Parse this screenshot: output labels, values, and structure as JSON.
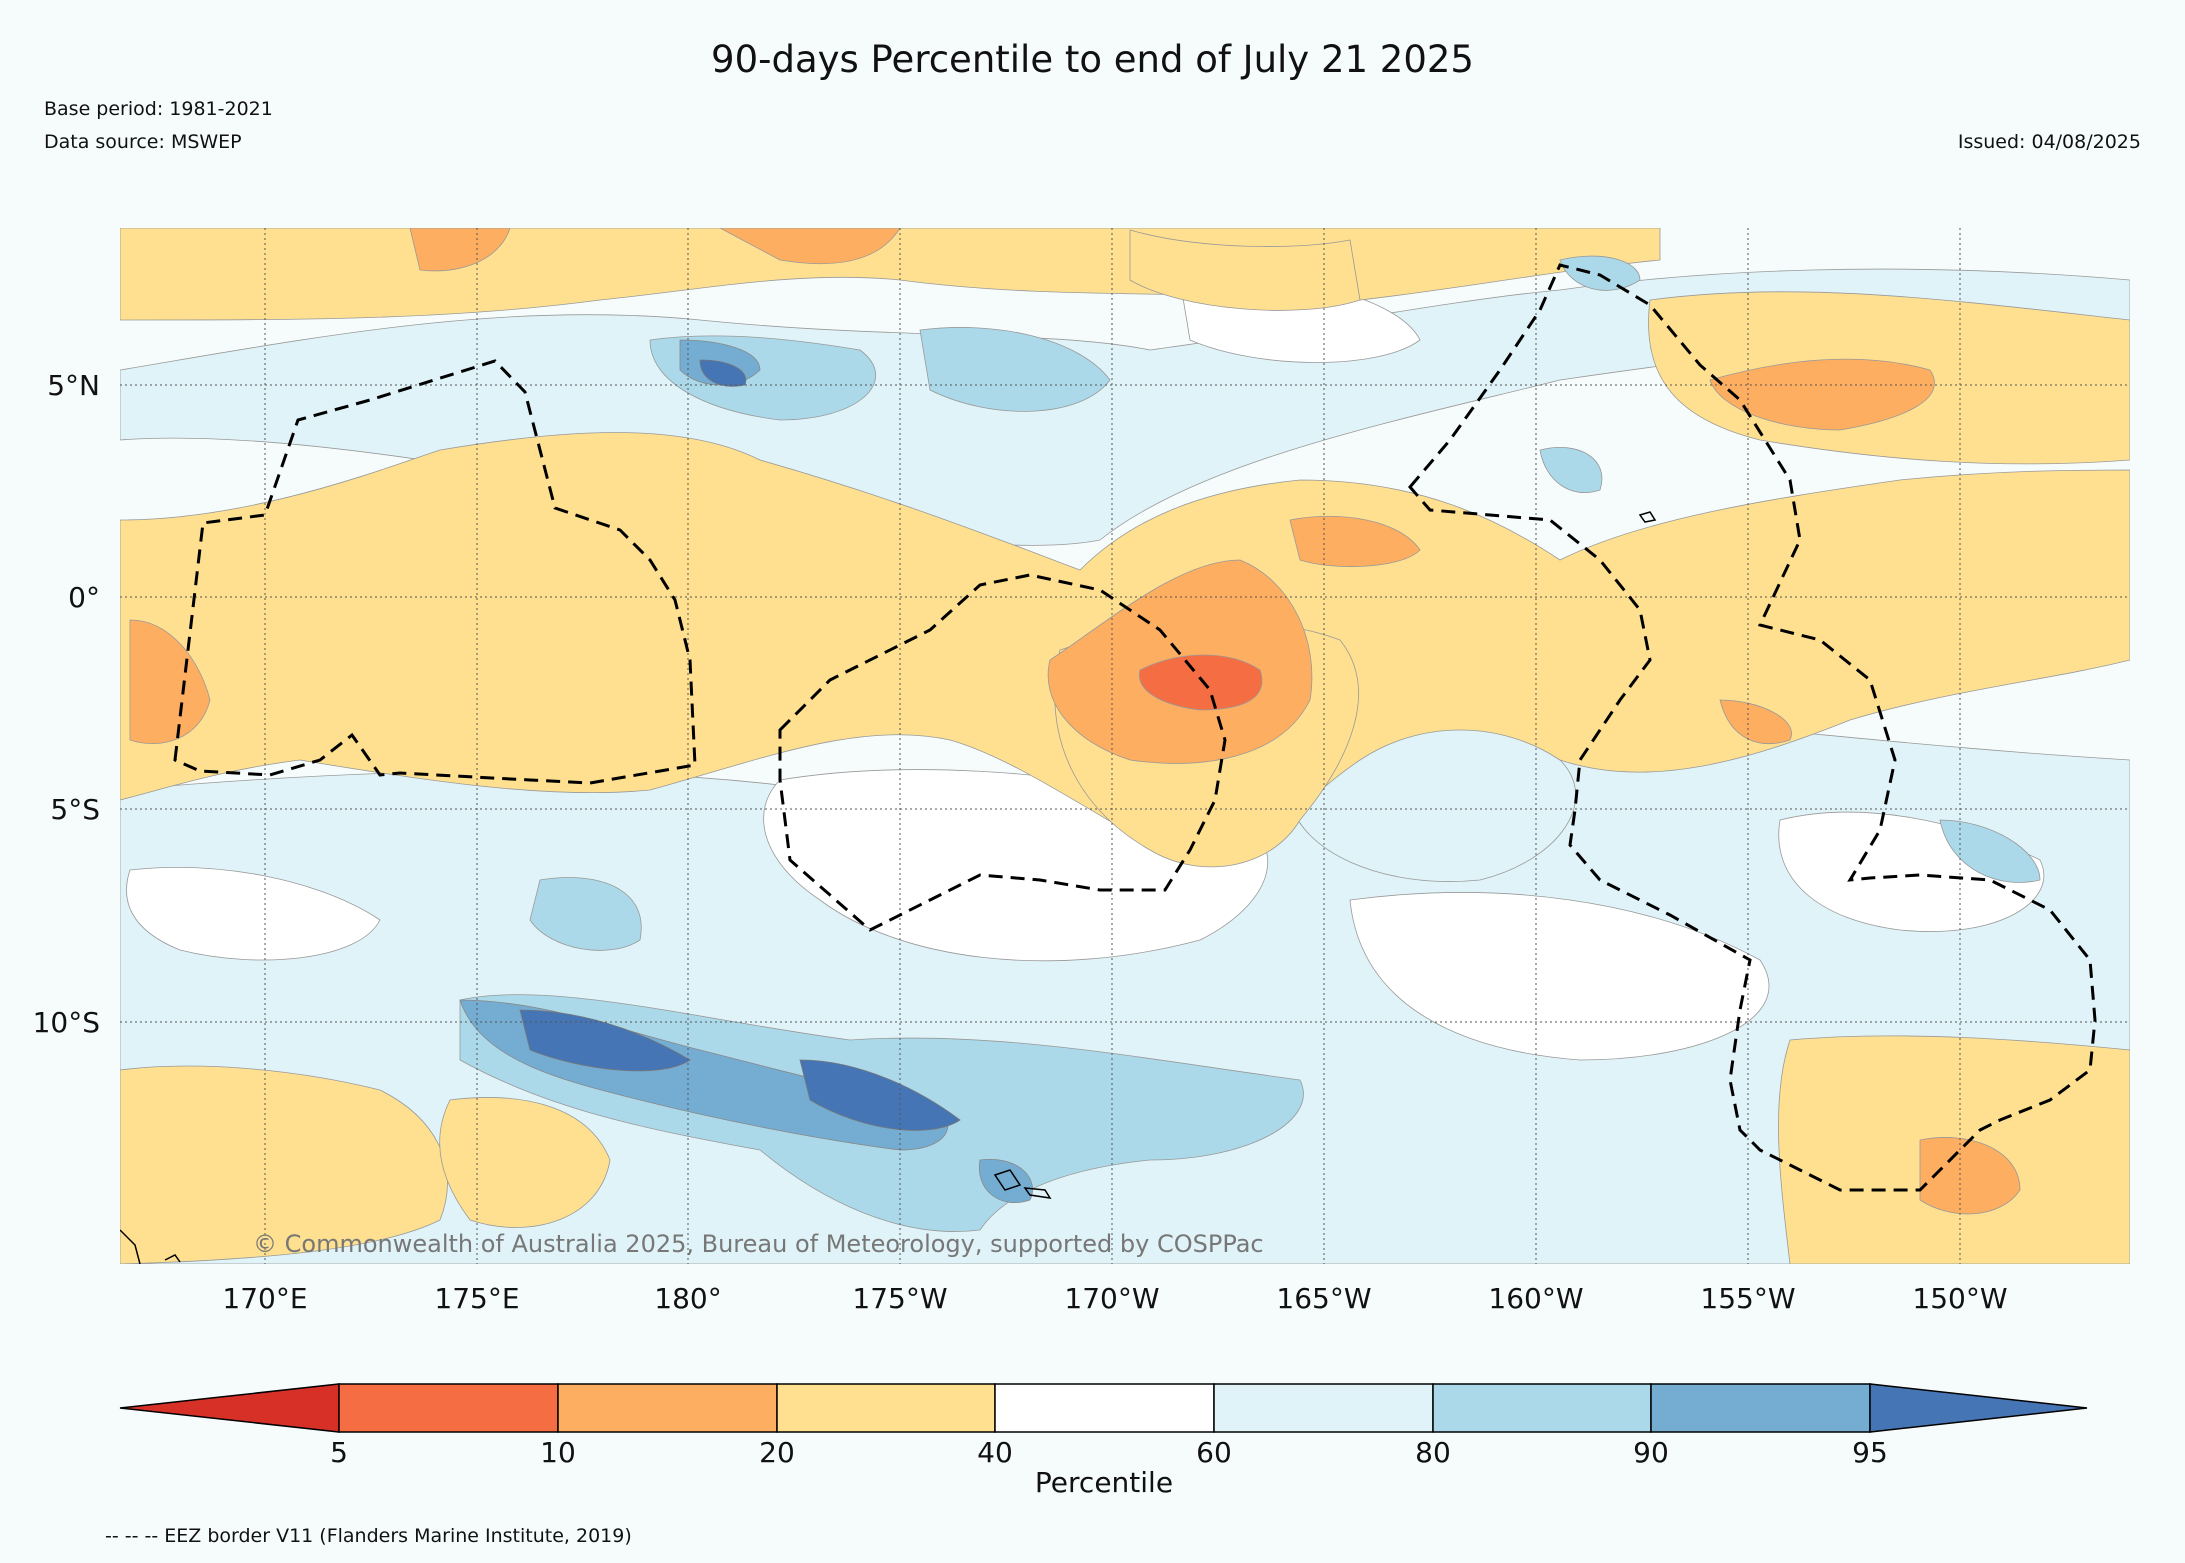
{
  "title": "90-days Percentile to end of July 21 2025",
  "base_period": "Base period: 1981-2021",
  "data_source": "Data source: MSWEP",
  "issued": "Issued: 04/08/2025",
  "copyright": "© Commonwealth of Australia 2025, Bureau of Meteorology, supported by COSPPac",
  "footnote": "-- -- -- EEZ border V11 (Flanders Marine Institute, 2019)",
  "axes": {
    "lat_ticks": [
      "5°N",
      "0°",
      "5°S",
      "10°S"
    ],
    "lon_ticks": [
      "170°E",
      "175°E",
      "180°",
      "175°W",
      "170°W",
      "165°W",
      "160°W",
      "155°W",
      "150°W"
    ]
  },
  "colorbar": {
    "title": "Percentile",
    "tick_labels": [
      "5",
      "10",
      "20",
      "40",
      "60",
      "80",
      "90",
      "95"
    ],
    "colors": [
      "#d73027",
      "#f46d43",
      "#fdae61",
      "#fee090",
      "#ffffff",
      "#e0f3f8",
      "#abd9e9",
      "#74add1",
      "#4575b4"
    ]
  }
}
